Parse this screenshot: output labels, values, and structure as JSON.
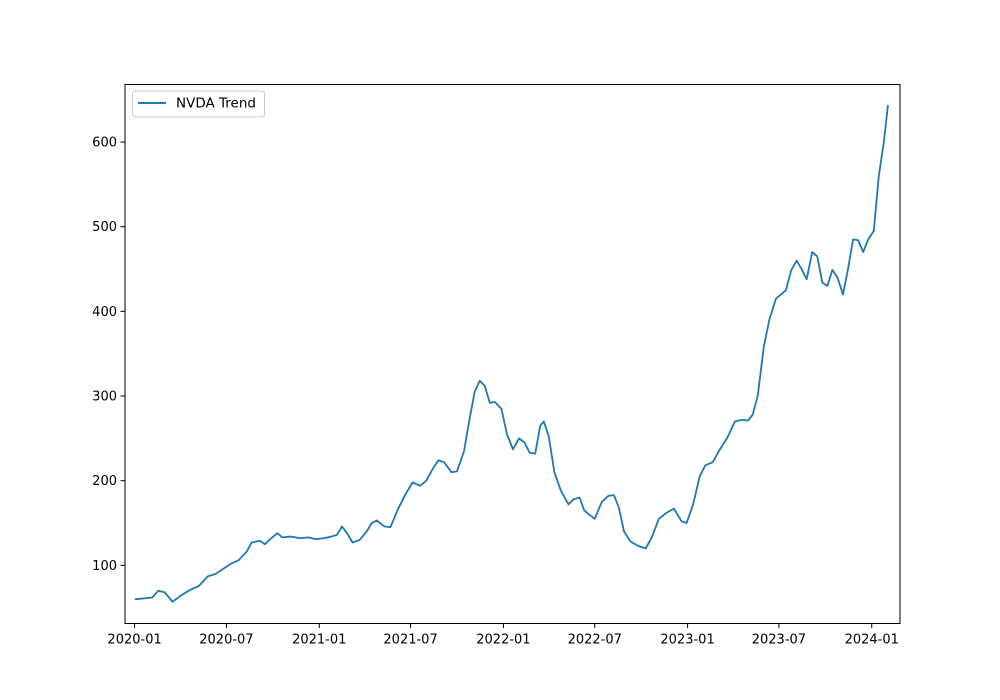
{
  "chart_data": {
    "type": "line",
    "title": "",
    "xlabel": "",
    "ylabel": "",
    "xlim": [
      "2019-12-13",
      "2024-02-26"
    ],
    "ylim": [
      31.3,
      668
    ],
    "grid": false,
    "legend": "top-left",
    "x_ticks": [
      {
        "date": "2020-01-01",
        "label": "2020-01"
      },
      {
        "date": "2020-07-01",
        "label": "2020-07"
      },
      {
        "date": "2021-01-01",
        "label": "2021-01"
      },
      {
        "date": "2021-07-01",
        "label": "2021-07"
      },
      {
        "date": "2022-01-01",
        "label": "2022-01"
      },
      {
        "date": "2022-07-01",
        "label": "2022-07"
      },
      {
        "date": "2023-01-01",
        "label": "2023-01"
      },
      {
        "date": "2023-07-01",
        "label": "2023-07"
      },
      {
        "date": "2024-01-01",
        "label": "2024-01"
      }
    ],
    "y_ticks": [
      {
        "value": 100,
        "label": "100"
      },
      {
        "value": 200,
        "label": "200"
      },
      {
        "value": 300,
        "label": "300"
      },
      {
        "value": 400,
        "label": "400"
      },
      {
        "value": 500,
        "label": "500"
      },
      {
        "value": 600,
        "label": "600"
      }
    ],
    "series": [
      {
        "name": "NVDA Trend",
        "color": "#1f77b4",
        "x": [
          "2020-01-03",
          "2020-01-20",
          "2020-02-05",
          "2020-02-17",
          "2020-03-01",
          "2020-03-16",
          "2020-04-01",
          "2020-04-20",
          "2020-05-08",
          "2020-05-25",
          "2020-06-10",
          "2020-06-25",
          "2020-07-10",
          "2020-07-25",
          "2020-08-10",
          "2020-08-20",
          "2020-09-05",
          "2020-09-15",
          "2020-09-28",
          "2020-10-10",
          "2020-10-20",
          "2020-11-05",
          "2020-11-25",
          "2020-12-10",
          "2020-12-25",
          "2021-01-10",
          "2021-01-25",
          "2021-02-05",
          "2021-02-15",
          "2021-02-25",
          "2021-03-08",
          "2021-03-22",
          "2021-04-05",
          "2021-04-15",
          "2021-04-25",
          "2021-05-10",
          "2021-05-22",
          "2021-06-05",
          "2021-06-20",
          "2021-07-05",
          "2021-07-20",
          "2021-08-01",
          "2021-08-15",
          "2021-08-25",
          "2021-09-05",
          "2021-09-20",
          "2021-10-01",
          "2021-10-15",
          "2021-10-25",
          "2021-11-05",
          "2021-11-15",
          "2021-11-25",
          "2021-12-05",
          "2021-12-15",
          "2021-12-28",
          "2022-01-08",
          "2022-01-20",
          "2022-02-01",
          "2022-02-12",
          "2022-02-22",
          "2022-03-05",
          "2022-03-15",
          "2022-03-22",
          "2022-04-01",
          "2022-04-12",
          "2022-04-25",
          "2022-05-10",
          "2022-05-20",
          "2022-06-01",
          "2022-06-10",
          "2022-06-20",
          "2022-07-01",
          "2022-07-15",
          "2022-07-28",
          "2022-08-08",
          "2022-08-18",
          "2022-08-28",
          "2022-09-10",
          "2022-09-25",
          "2022-10-10",
          "2022-10-22",
          "2022-11-05",
          "2022-11-20",
          "2022-12-05",
          "2022-12-20",
          "2022-12-30",
          "2023-01-12",
          "2023-01-25",
          "2023-02-05",
          "2023-02-20",
          "2023-03-05",
          "2023-03-20",
          "2023-04-05",
          "2023-04-20",
          "2023-05-01",
          "2023-05-10",
          "2023-05-20",
          "2023-06-01",
          "2023-06-12",
          "2023-06-25",
          "2023-07-05",
          "2023-07-15",
          "2023-07-25",
          "2023-08-05",
          "2023-08-15",
          "2023-08-25",
          "2023-09-05",
          "2023-09-15",
          "2023-09-25",
          "2023-10-05",
          "2023-10-15",
          "2023-10-25",
          "2023-11-05",
          "2023-11-15",
          "2023-11-25",
          "2023-12-05",
          "2023-12-15",
          "2023-12-25",
          "2024-01-05",
          "2024-01-15",
          "2024-01-25",
          "2024-02-02"
        ],
        "values": [
          60,
          61,
          62,
          70,
          68,
          57,
          64,
          71,
          76,
          87,
          90,
          96,
          102,
          106,
          116,
          127,
          129,
          125,
          132,
          138,
          133,
          134,
          132,
          133,
          131,
          132,
          134,
          136,
          146,
          138,
          127,
          130,
          140,
          150,
          153,
          146,
          145,
          165,
          183,
          198,
          194,
          200,
          215,
          224,
          222,
          210,
          211,
          235,
          270,
          305,
          318,
          312,
          292,
          293,
          285,
          255,
          237,
          250,
          245,
          233,
          232,
          265,
          270,
          252,
          210,
          188,
          172,
          178,
          180,
          165,
          160,
          155,
          175,
          182,
          183,
          168,
          140,
          128,
          123,
          120,
          133,
          155,
          162,
          167,
          152,
          150,
          172,
          205,
          218,
          222,
          236,
          250,
          270,
          272,
          271,
          278,
          300,
          358,
          390,
          415,
          420,
          425,
          448,
          460,
          450,
          438,
          470,
          465,
          434,
          430,
          449,
          440,
          420,
          450,
          485,
          484,
          470,
          485,
          495,
          560,
          600,
          643
        ]
      }
    ]
  }
}
